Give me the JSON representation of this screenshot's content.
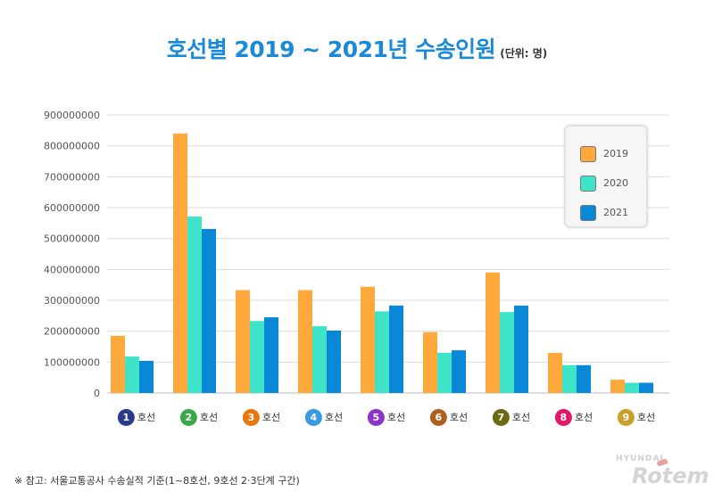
{
  "title": {
    "main": "호선별 2019 ~ 2021년 수송인원",
    "unit": "(단위: 명)"
  },
  "colors": {
    "title": "#1a8ad8",
    "grid": "#dddddd"
  },
  "chart_data": {
    "type": "bar",
    "title": "호선별 2019 ~ 2021년 수송인원",
    "ylabel": "명",
    "ylim": [
      0,
      900000000
    ],
    "yticks": [
      0,
      100000000,
      200000000,
      300000000,
      400000000,
      500000000,
      600000000,
      700000000,
      800000000,
      900000000
    ],
    "grid": true,
    "legend_position": "top-right",
    "categories": [
      {
        "num": "1",
        "label": "호선",
        "color": "#2a3a8c"
      },
      {
        "num": "2",
        "label": "호선",
        "color": "#3aa84a"
      },
      {
        "num": "3",
        "label": "호선",
        "color": "#e8780e"
      },
      {
        "num": "4",
        "label": "호선",
        "color": "#3a9ae0"
      },
      {
        "num": "5",
        "label": "호선",
        "color": "#8a35c8"
      },
      {
        "num": "6",
        "label": "호선",
        "color": "#b0601e"
      },
      {
        "num": "7",
        "label": "호선",
        "color": "#6a6a12"
      },
      {
        "num": "8",
        "label": "호선",
        "color": "#e0186a"
      },
      {
        "num": "9",
        "label": "호선",
        "color": "#c8a02a"
      }
    ],
    "series": [
      {
        "name": "2019",
        "color": "#ffa83c",
        "values": [
          185000000,
          840000000,
          333000000,
          333000000,
          344000000,
          197000000,
          390000000,
          130000000,
          43000000
        ]
      },
      {
        "name": "2020",
        "color": "#3ee3c8",
        "values": [
          118000000,
          571000000,
          233000000,
          216000000,
          264000000,
          130000000,
          262000000,
          90000000,
          33000000
        ]
      },
      {
        "name": "2021",
        "color": "#0a88d8",
        "values": [
          104000000,
          531000000,
          245000000,
          202000000,
          283000000,
          138000000,
          283000000,
          90000000,
          33000000
        ]
      }
    ]
  },
  "footnote": "※ 참고: 서울교통공사 수송실적 기준(1~8호선, 9호선 2·3단계 구간)",
  "logo": {
    "brand": "HYUNDAI",
    "name": "Rotem"
  }
}
